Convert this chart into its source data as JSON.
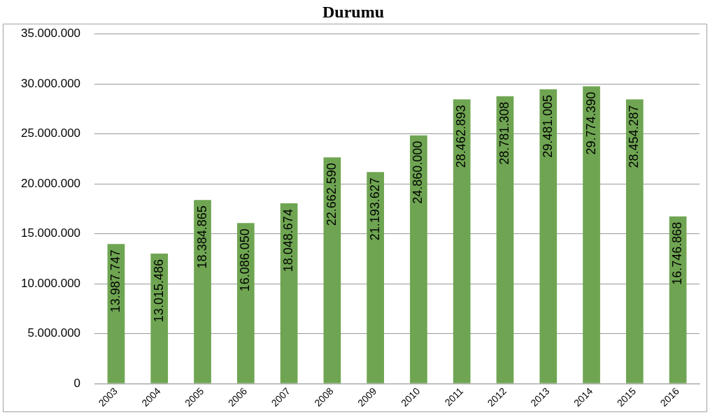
{
  "chart_data": {
    "type": "bar",
    "title": "Durumu",
    "categories": [
      "2003",
      "2004",
      "2005",
      "2006",
      "2007",
      "2008",
      "2009",
      "2010",
      "2011",
      "2012",
      "2013",
      "2014",
      "2015",
      "2016"
    ],
    "values": [
      13987747,
      13015486,
      18384865,
      16086050,
      18048674,
      22662590,
      21193627,
      24860000,
      28462893,
      28781308,
      29481005,
      29774390,
      28454287,
      16746868
    ],
    "value_labels": [
      "13.987.747",
      "13.015.486",
      "18.384.865",
      "16.086.050",
      "18.048.674",
      "22.662.590",
      "21.193.627",
      "24.860.000",
      "28.462.893",
      "28.781.308",
      "29.481.005",
      "29.774.390",
      "28.454.287",
      "16.746.868"
    ],
    "color": "#6fa552",
    "ylim": [
      0,
      35000000
    ],
    "yticks": [
      {
        "value": 0,
        "label": "0"
      },
      {
        "value": 5000000,
        "label": "5.000.000"
      },
      {
        "value": 10000000,
        "label": "10.000.000"
      },
      {
        "value": 15000000,
        "label": "15.000.000"
      },
      {
        "value": 20000000,
        "label": "20.000.000"
      },
      {
        "value": 25000000,
        "label": "25.000.000"
      },
      {
        "value": 30000000,
        "label": "30.000.000"
      },
      {
        "value": 35000000,
        "label": "35.000.000"
      }
    ],
    "grid": "y",
    "legend": false
  }
}
